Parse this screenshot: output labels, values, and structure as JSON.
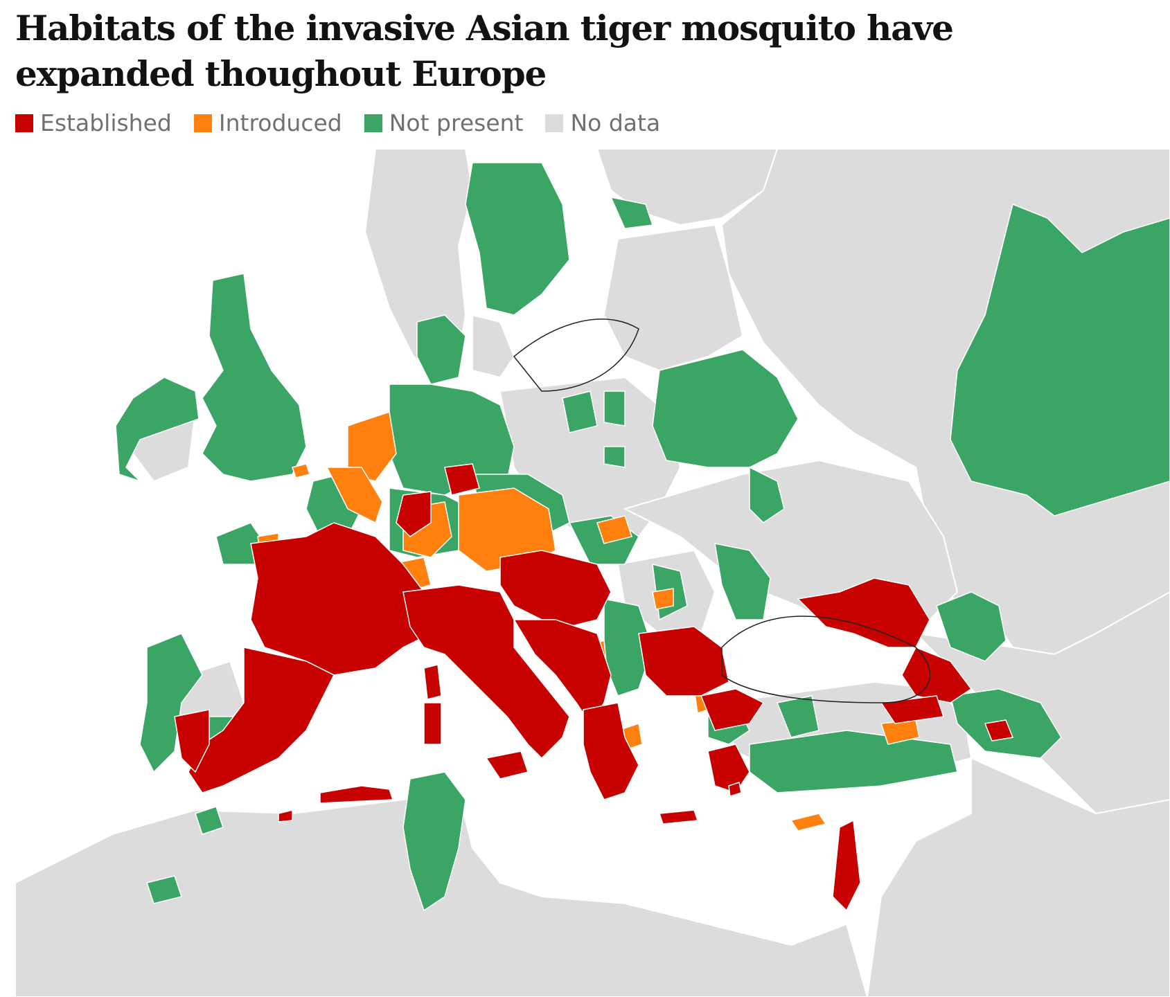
{
  "title": "Habitats of the invasive Asian tiger mosquito have expanded thoughout Europe",
  "legend": [
    {
      "key": "established",
      "label": "Established",
      "color": "#c70000"
    },
    {
      "key": "introduced",
      "label": "Introduced",
      "color": "#ff7f0f"
    },
    {
      "key": "not_present",
      "label": "Not present",
      "color": "#3aa564"
    },
    {
      "key": "no_data",
      "label": "No data",
      "color": "#dcdcdc"
    }
  ],
  "colors": {
    "sea": "#ffffff",
    "land_no_data": "#dcdcdc",
    "border": "#ffffff",
    "coast_outline": "#222222"
  }
}
